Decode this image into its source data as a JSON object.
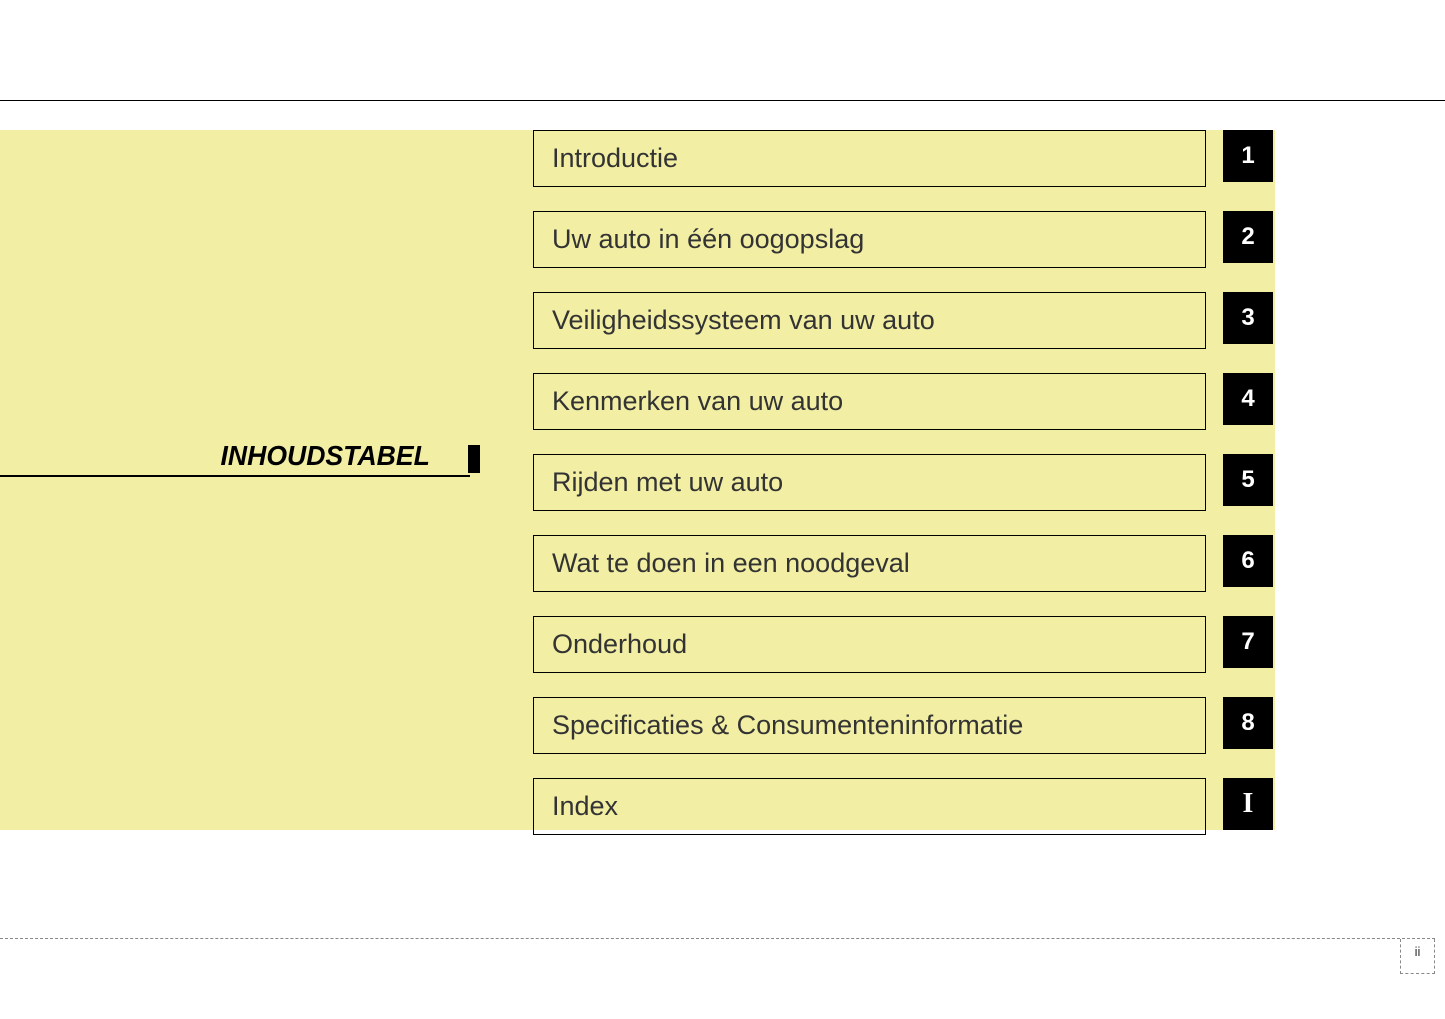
{
  "title": "INHOUDSTABEL",
  "toc_items": [
    {
      "label": "Introductie",
      "num": "1"
    },
    {
      "label": "Uw auto in één oogopslag",
      "num": "2"
    },
    {
      "label": "Veiligheidssysteem van uw auto",
      "num": "3"
    },
    {
      "label": "Kenmerken van uw auto",
      "num": "4"
    },
    {
      "label": "Rijden met uw auto",
      "num": "5"
    },
    {
      "label": "Wat te doen in een noodgeval",
      "num": "6"
    },
    {
      "label": "Onderhoud",
      "num": "7"
    },
    {
      "label": "Specificaties & Consumenteninformatie",
      "num": "8"
    },
    {
      "label": "Index",
      "num": "I",
      "is_index": true
    }
  ],
  "page_number": "ii",
  "colors": {
    "background": "#ffffff",
    "yellow_bg": "#f2eea4",
    "text": "#333333",
    "black": "#000000",
    "white": "#ffffff",
    "dashed": "#888888"
  }
}
